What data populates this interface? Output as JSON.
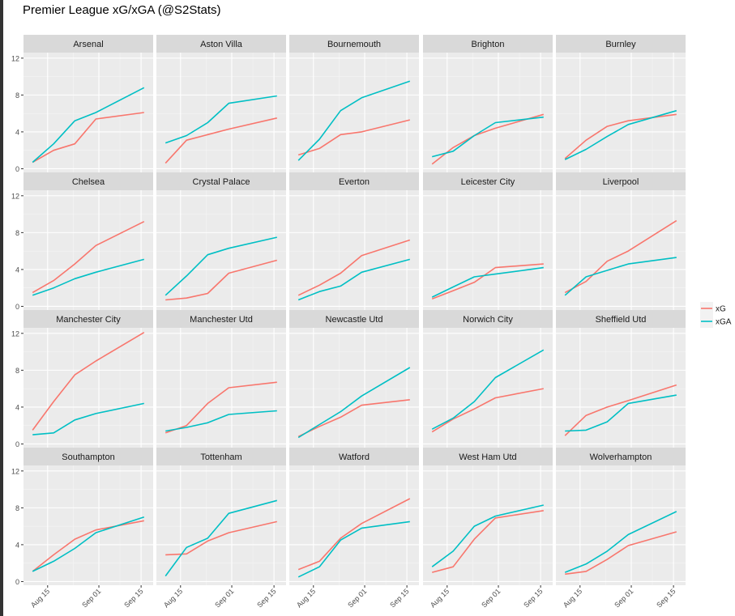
{
  "page": {
    "title": "Premier League xG/xGA (@S2Stats)"
  },
  "chart_data": {
    "type": "line",
    "title": "Premier League xG/xGA (@S2Stats)",
    "xlabel": "",
    "ylabel": "",
    "ylim": [
      -0.4,
      12.6
    ],
    "y_ticks": [
      0,
      4,
      8,
      12
    ],
    "x_domain": [
      "2019-08-07",
      "2019-09-19"
    ],
    "x_ticks": [
      {
        "date": "2019-08-15",
        "label": "Aug 15"
      },
      {
        "date": "2019-09-01",
        "label": "Sep 01"
      },
      {
        "date": "2019-09-15",
        "label": "Sep 15"
      }
    ],
    "x_dates": [
      "2019-08-10",
      "2019-08-17",
      "2019-08-24",
      "2019-08-31",
      "2019-09-16"
    ],
    "grid": true,
    "legend": {
      "placement": "right",
      "items": [
        {
          "name": "xG",
          "color": "#F8766D"
        },
        {
          "name": "xGA",
          "color": "#00BFC4"
        }
      ]
    },
    "panels": [
      {
        "team": "Arsenal",
        "xG": [
          0.7,
          2.0,
          2.7,
          5.4,
          6.1
        ],
        "xGA": [
          0.7,
          2.7,
          5.2,
          6.1,
          8.8
        ]
      },
      {
        "team": "Aston Villa",
        "xG": [
          0.6,
          3.1,
          3.7,
          4.3,
          5.5
        ],
        "xGA": [
          2.8,
          3.6,
          5.0,
          7.1,
          7.9
        ]
      },
      {
        "team": "Bournemouth",
        "xG": [
          1.5,
          2.2,
          3.7,
          4.0,
          5.3
        ],
        "xGA": [
          0.9,
          3.2,
          6.3,
          7.7,
          9.5
        ]
      },
      {
        "team": "Brighton",
        "xG": [
          0.5,
          2.3,
          3.6,
          4.4,
          5.9
        ],
        "xGA": [
          1.3,
          1.9,
          3.6,
          5.0,
          5.6
        ]
      },
      {
        "team": "Burnley",
        "xG": [
          1.1,
          3.1,
          4.6,
          5.2,
          5.9
        ],
        "xGA": [
          1.0,
          2.1,
          3.5,
          4.8,
          6.3
        ]
      },
      {
        "team": "Chelsea",
        "xG": [
          1.5,
          2.8,
          4.6,
          6.6,
          9.2
        ],
        "xGA": [
          1.2,
          2.0,
          3.0,
          3.7,
          5.1
        ]
      },
      {
        "team": "Crystal Palace",
        "xG": [
          0.7,
          0.9,
          1.4,
          3.6,
          5.0
        ],
        "xGA": [
          1.2,
          3.3,
          5.6,
          6.3,
          7.5
        ]
      },
      {
        "team": "Everton",
        "xG": [
          1.2,
          2.3,
          3.6,
          5.5,
          7.2
        ],
        "xGA": [
          0.7,
          1.6,
          2.2,
          3.7,
          5.1
        ]
      },
      {
        "team": "Leicester City",
        "xG": [
          0.8,
          1.7,
          2.6,
          4.2,
          4.6
        ],
        "xGA": [
          1.0,
          2.1,
          3.2,
          3.5,
          4.2
        ]
      },
      {
        "team": "Liverpool",
        "xG": [
          1.5,
          2.7,
          4.9,
          6.0,
          9.3
        ],
        "xGA": [
          1.2,
          3.2,
          3.9,
          4.6,
          5.3
        ]
      },
      {
        "team": "Manchester City",
        "xG": [
          1.5,
          4.6,
          7.5,
          9.0,
          12.1
        ],
        "xGA": [
          1.0,
          1.2,
          2.6,
          3.3,
          4.4
        ]
      },
      {
        "team": "Manchester Utd",
        "xG": [
          1.2,
          2.0,
          4.4,
          6.1,
          6.7
        ],
        "xGA": [
          1.4,
          1.8,
          2.3,
          3.2,
          3.6
        ]
      },
      {
        "team": "Newcastle Utd",
        "xG": [
          0.8,
          1.9,
          2.9,
          4.2,
          4.8
        ],
        "xGA": [
          0.7,
          2.1,
          3.5,
          5.2,
          8.3
        ]
      },
      {
        "team": "Norwich City",
        "xG": [
          1.3,
          2.7,
          3.8,
          5.0,
          6.0
        ],
        "xGA": [
          1.6,
          2.8,
          4.6,
          7.2,
          10.2
        ]
      },
      {
        "team": "Sheffield Utd",
        "xG": [
          0.9,
          3.1,
          4.0,
          4.7,
          6.4
        ],
        "xGA": [
          1.4,
          1.5,
          2.4,
          4.4,
          5.3
        ]
      },
      {
        "team": "Southampton",
        "xG": [
          1.1,
          2.9,
          4.6,
          5.6,
          6.6
        ],
        "xGA": [
          1.1,
          2.2,
          3.6,
          5.3,
          7.0
        ]
      },
      {
        "team": "Tottenham",
        "xG": [
          2.9,
          3.0,
          4.4,
          5.3,
          6.5
        ],
        "xGA": [
          0.6,
          3.7,
          4.7,
          7.4,
          8.8
        ]
      },
      {
        "team": "Watford",
        "xG": [
          1.3,
          2.2,
          4.7,
          6.3,
          9.0
        ],
        "xGA": [
          0.5,
          1.6,
          4.5,
          5.8,
          6.5
        ]
      },
      {
        "team": "West Ham Utd",
        "xG": [
          1.0,
          1.6,
          4.6,
          6.9,
          7.7
        ],
        "xGA": [
          1.6,
          3.3,
          6.0,
          7.1,
          8.3
        ]
      },
      {
        "team": "Wolverhampton",
        "xG": [
          0.8,
          1.1,
          2.4,
          3.9,
          5.4
        ],
        "xGA": [
          1.0,
          1.9,
          3.3,
          5.1,
          7.6
        ]
      }
    ]
  }
}
